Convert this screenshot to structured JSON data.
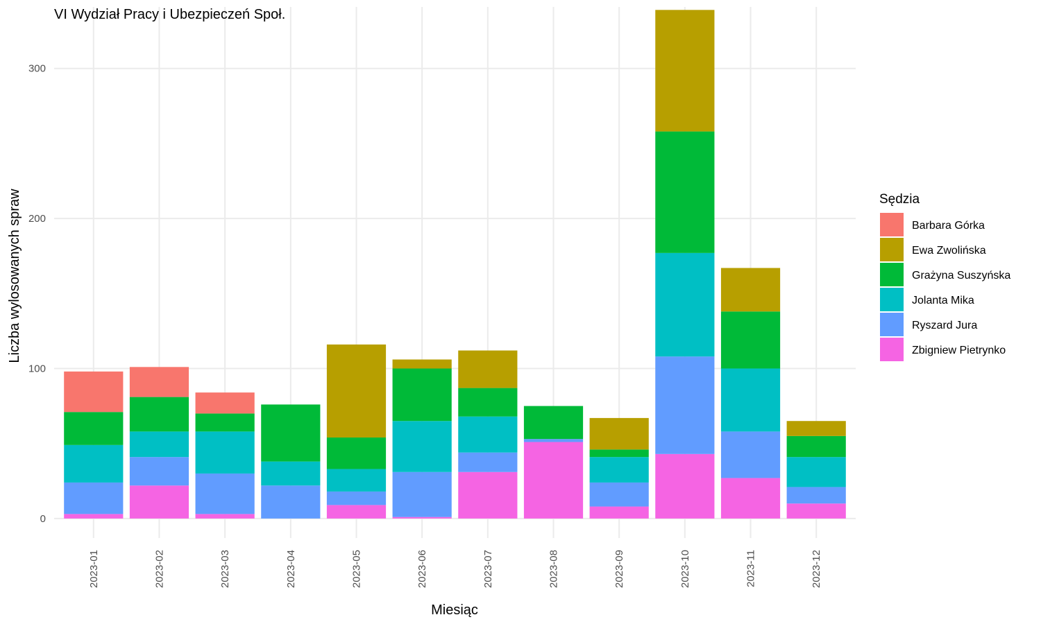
{
  "chart_data": {
    "type": "bar",
    "stacked": true,
    "title": "VI Wydział Pracy i Ubezpieczeń Społ.",
    "xlabel": "Miesiąc",
    "ylabel": "Liczba wylosowanych spraw",
    "ylim": [
      -13,
      341
    ],
    "yticks": [
      0,
      100,
      200,
      300
    ],
    "grid": true,
    "legend": {
      "title": "Sędzia",
      "position": "right"
    },
    "categories": [
      "2023-01",
      "2023-02",
      "2023-03",
      "2023-04",
      "2023-05",
      "2023-06",
      "2023-07",
      "2023-08",
      "2023-09",
      "2023-10",
      "2023-11",
      "2023-12"
    ],
    "series": [
      {
        "name": "Zbigniew Pietrynko",
        "color": "#F564E3",
        "values": [
          3,
          22,
          3,
          0,
          9,
          1,
          31,
          51,
          8,
          43,
          27,
          10
        ]
      },
      {
        "name": "Ryszard Jura",
        "color": "#619CFF",
        "values": [
          21,
          19,
          27,
          22,
          9,
          30,
          13,
          2,
          16,
          65,
          31,
          11
        ]
      },
      {
        "name": "Jolanta Mika",
        "color": "#00BFC4",
        "values": [
          25,
          17,
          28,
          16,
          15,
          34,
          24,
          0,
          17,
          69,
          42,
          20
        ]
      },
      {
        "name": "Grażyna Suszyńska",
        "color": "#00BA38",
        "values": [
          22,
          23,
          12,
          38,
          21,
          35,
          19,
          22,
          5,
          81,
          38,
          14
        ]
      },
      {
        "name": "Ewa Zwolińska",
        "color": "#B79F00",
        "values": [
          0,
          0,
          0,
          0,
          62,
          6,
          25,
          0,
          21,
          81,
          29,
          10
        ]
      },
      {
        "name": "Barbara Górka",
        "color": "#F8766D",
        "values": [
          27,
          20,
          14,
          0,
          0,
          0,
          0,
          0,
          0,
          0,
          0,
          0
        ]
      }
    ]
  }
}
